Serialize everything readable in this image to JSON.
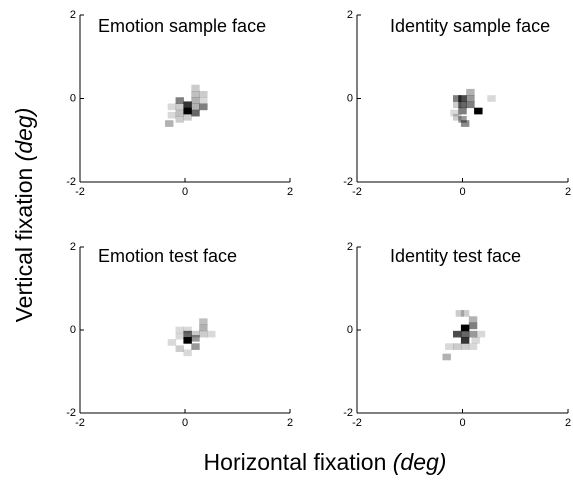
{
  "figure": {
    "xlabel": "Horizontal fixation",
    "xlabel_unit": "(deg)",
    "ylabel": "Vertical fixation",
    "ylabel_unit": "(deg)"
  },
  "chart_data": [
    {
      "type": "heatmap",
      "title": "Emotion sample face",
      "xlim": [
        -2,
        2
      ],
      "ylim": [
        -2,
        2
      ],
      "xticks": [
        -2,
        0,
        2
      ],
      "yticks": [
        -2,
        0,
        2
      ],
      "cell_size": 0.16,
      "color": "#000000",
      "x": [
        0.05,
        0.05,
        -0.1,
        0.2,
        0.2,
        0.2,
        0.35,
        0.35,
        0.35,
        0.2,
        -0.1,
        -0.25,
        -0.1,
        0.05,
        -0.1,
        -0.25,
        -0.3,
        0.2
      ],
      "y": [
        -0.15,
        -0.3,
        -0.05,
        -0.05,
        0.1,
        0.25,
        0.1,
        -0.05,
        -0.2,
        -0.35,
        -0.2,
        -0.2,
        -0.35,
        -0.45,
        -0.5,
        -0.4,
        -0.6,
        -0.2
      ],
      "values": [
        0.8,
        1,
        0.5,
        0.3,
        0.25,
        0.2,
        0.2,
        0.15,
        0.5,
        0.6,
        0.2,
        0.15,
        0.25,
        0.2,
        0.2,
        0.15,
        0.3,
        0.3
      ]
    },
    {
      "type": "heatmap",
      "title": "Identity sample face",
      "xlim": [
        -2,
        2
      ],
      "ylim": [
        -2,
        2
      ],
      "xticks": [
        -2,
        0,
        2
      ],
      "yticks": [
        -2,
        0,
        2
      ],
      "cell_size": 0.16,
      "color": "#000000",
      "x": [
        0,
        -0.1,
        0.15,
        0.15,
        0,
        0.15,
        0.3,
        0,
        -0.1,
        -0.15,
        0,
        0.05,
        0.55,
        -0.1
      ],
      "y": [
        0,
        0,
        0,
        0.15,
        -0.15,
        -0.15,
        -0.3,
        -0.3,
        -0.15,
        -0.35,
        -0.5,
        -0.6,
        0,
        -0.45
      ],
      "values": [
        0.7,
        0.5,
        0.4,
        0.3,
        0.6,
        0.5,
        1,
        0.5,
        0.2,
        0.15,
        0.4,
        0.45,
        0.15,
        0.2
      ]
    },
    {
      "type": "heatmap",
      "title": "Emotion test face",
      "xlim": [
        -2,
        2
      ],
      "ylim": [
        -2,
        2
      ],
      "xticks": [
        -2,
        0,
        2
      ],
      "yticks": [
        -2,
        0,
        2
      ],
      "cell_size": 0.16,
      "color": "#000000",
      "x": [
        0.05,
        0.05,
        0.2,
        0.2,
        0.35,
        0.35,
        -0.1,
        0.05,
        0.35,
        0.5,
        -0.1,
        -0.25,
        -0.1,
        0.05,
        0.2
      ],
      "y": [
        -0.25,
        -0.1,
        -0.2,
        -0.1,
        0.05,
        0.2,
        0,
        0,
        -0.1,
        -0.1,
        -0.15,
        -0.3,
        -0.45,
        -0.55,
        -0.4
      ],
      "values": [
        1,
        0.6,
        0.4,
        0.2,
        0.3,
        0.25,
        0.15,
        0.15,
        0.2,
        0.15,
        0.15,
        0.15,
        0.2,
        0.15,
        0.4
      ]
    },
    {
      "type": "heatmap",
      "title": "Identity test face",
      "xlim": [
        -2,
        2
      ],
      "ylim": [
        -2,
        2
      ],
      "xticks": [
        -2,
        0,
        2
      ],
      "yticks": [
        -2,
        0,
        2
      ],
      "cell_size": 0.16,
      "color": "#000000",
      "x": [
        0.05,
        0.05,
        0.05,
        -0.1,
        0.2,
        0.2,
        0.2,
        -0.05,
        0.05,
        0.25,
        0.35,
        -0.1,
        -0.25,
        0.2,
        -0.3,
        0.05
      ],
      "y": [
        0.05,
        -0.1,
        -0.25,
        -0.1,
        0.1,
        0.25,
        -0.1,
        0.4,
        0.4,
        -0.25,
        -0.1,
        -0.4,
        -0.4,
        -0.4,
        -0.65,
        -0.4
      ],
      "values": [
        1,
        0.6,
        0.8,
        0.7,
        0.5,
        0.3,
        0.4,
        0.2,
        0.2,
        0.15,
        0.15,
        0.2,
        0.15,
        0.15,
        0.3,
        0.2
      ]
    }
  ]
}
